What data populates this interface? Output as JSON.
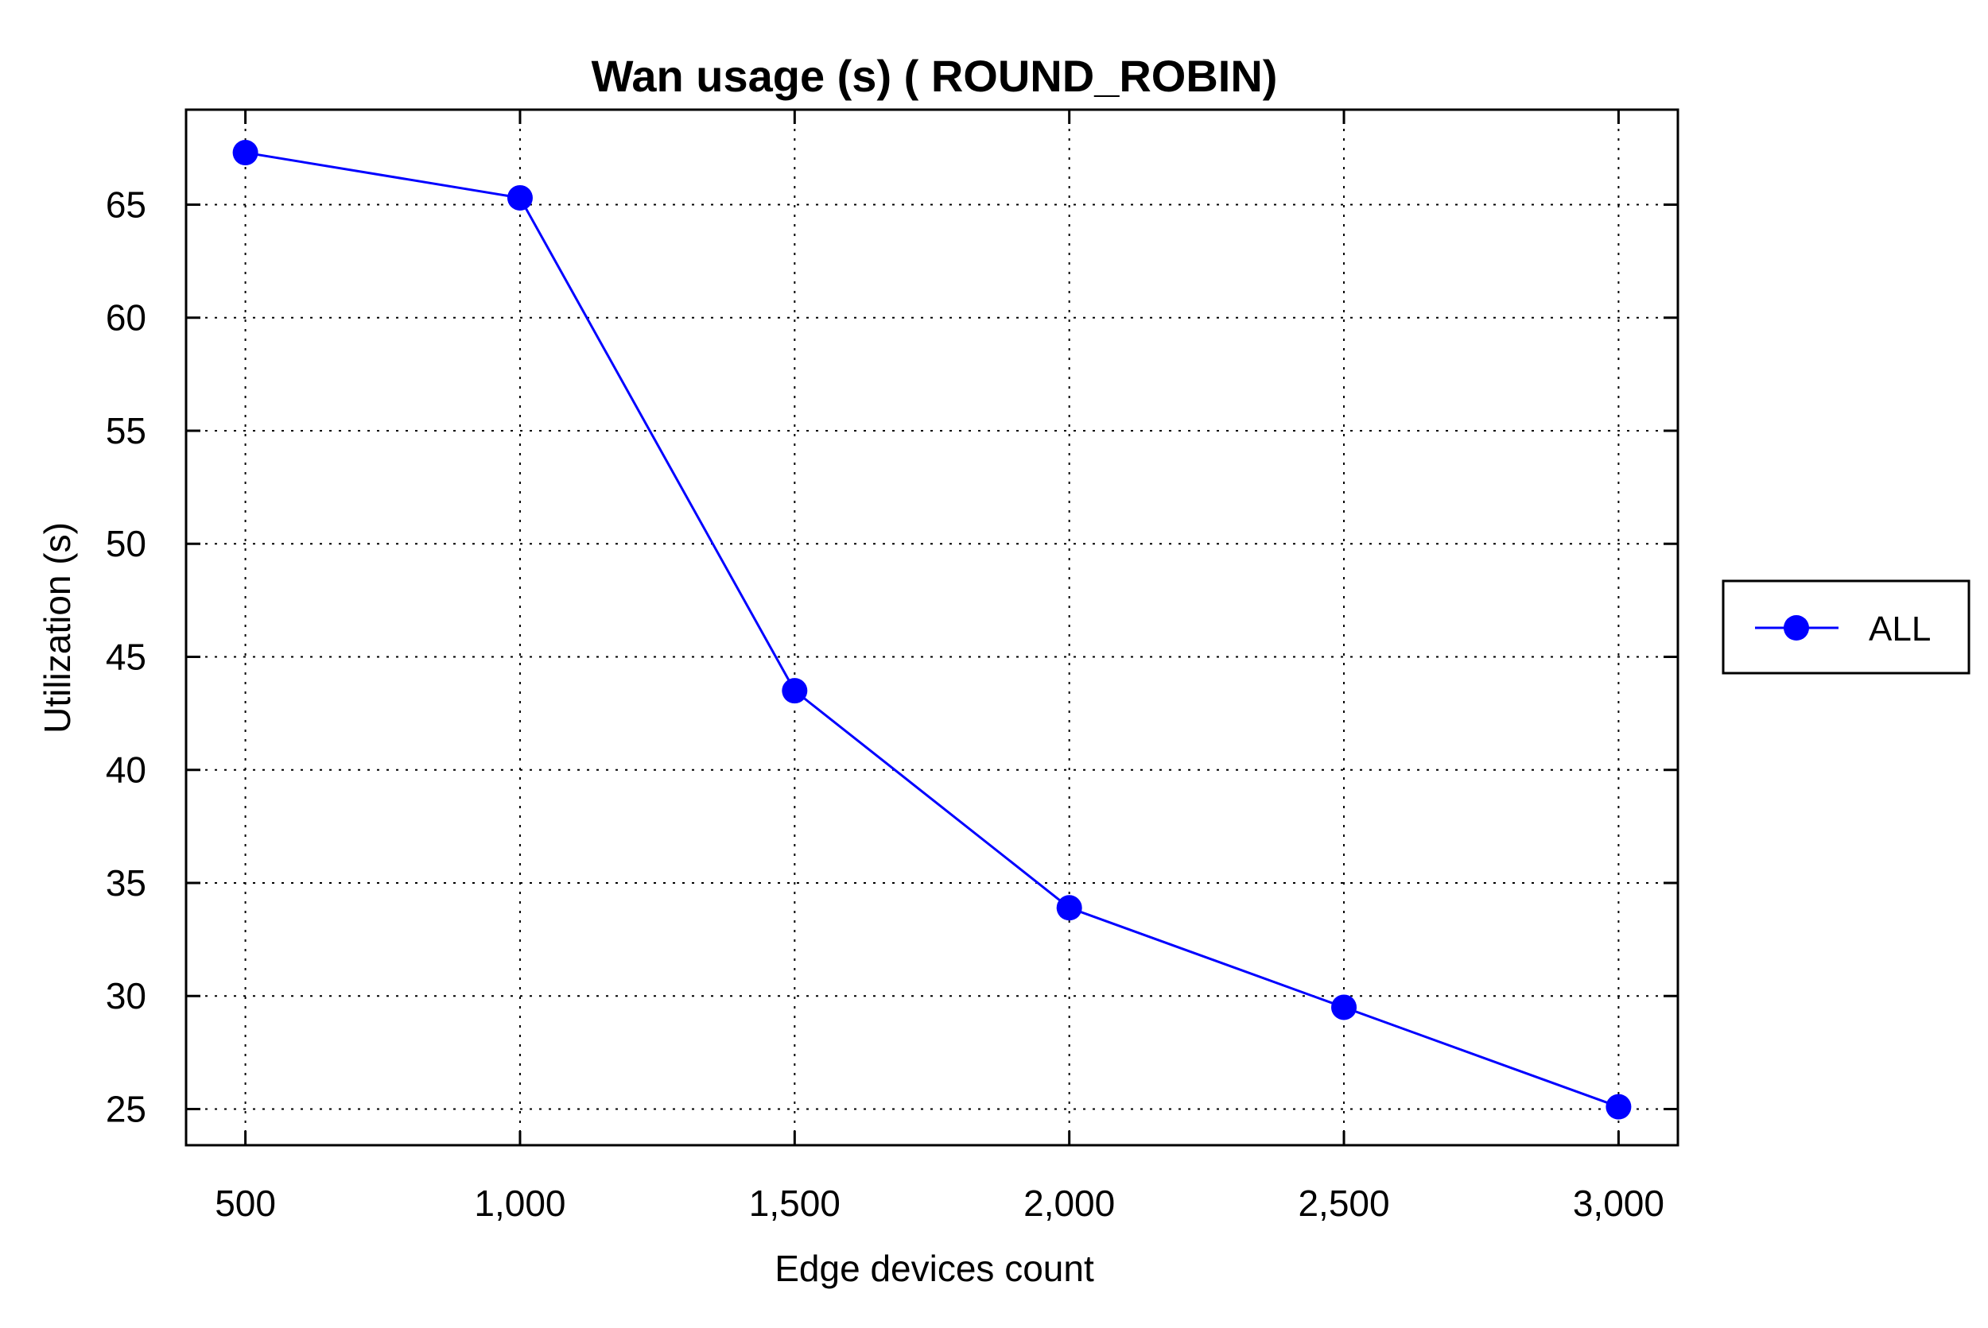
{
  "chart_data": {
    "type": "line",
    "title": "Wan usage (s) ( ROUND_ROBIN)",
    "xlabel": "Edge devices count",
    "ylabel": "Utilization (s)",
    "x": [
      500,
      1000,
      1500,
      2000,
      2500,
      3000
    ],
    "x_tick_labels": [
      "500",
      "1,000",
      "1,500",
      "2,000",
      "2,500",
      "3,000"
    ],
    "y_ticks": [
      25,
      30,
      35,
      40,
      45,
      50,
      55,
      60,
      65
    ],
    "y_tick_labels": [
      "25",
      "30",
      "35",
      "40",
      "45",
      "50",
      "55",
      "60",
      "65"
    ],
    "xlim": [
      392,
      3108
    ],
    "ylim": [
      23.4,
      69.2
    ],
    "grid": true,
    "legend_placement": "right-outside",
    "series": [
      {
        "name": "ALL",
        "color": "#0000ff",
        "marker": "circle",
        "values": [
          67.3,
          65.3,
          43.5,
          33.9,
          29.5,
          25.1
        ]
      }
    ]
  }
}
